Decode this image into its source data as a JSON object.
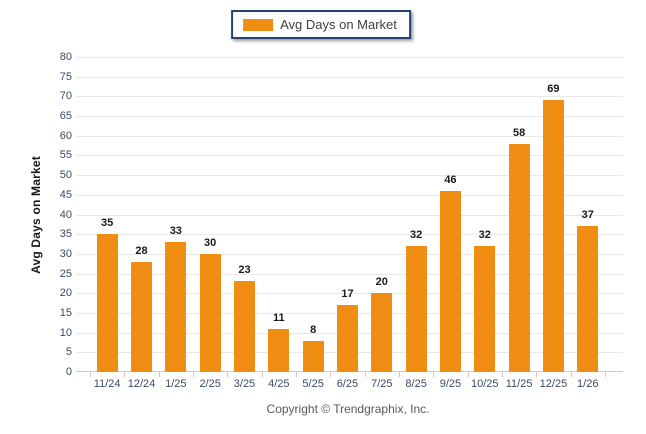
{
  "legend": {
    "label": "Avg Days on Market",
    "swatch_icon": "orange-square-swatch",
    "swatch_color": "#EF8E12",
    "border_color": "#26436F"
  },
  "footer": {
    "copyright": "Copyright © Trendgraphix, Inc."
  },
  "colors": {
    "bar": "#EF8E12",
    "gridline": "#E8E8E8",
    "axis_line": "#C9C9C9",
    "tick_label": "#3C4961",
    "value_label": "#1A1A1A"
  },
  "chart_data": {
    "type": "bar",
    "title": "",
    "categories": [
      "11/24",
      "12/24",
      "1/25",
      "2/25",
      "3/25",
      "4/25",
      "5/25",
      "6/25",
      "7/25",
      "8/25",
      "9/25",
      "10/25",
      "11/25",
      "12/25",
      "1/26"
    ],
    "values": [
      35,
      28,
      33,
      30,
      23,
      11,
      8,
      17,
      20,
      32,
      46,
      32,
      58,
      69,
      37
    ],
    "xlabel": "",
    "ylabel": "Avg Days on Market",
    "ylim": [
      0,
      80
    ],
    "ytick_step": 5,
    "grid": true,
    "legend_position": "top-center",
    "legend_entries": [
      "Avg Days on Market"
    ],
    "bar_color": "#EF8E12",
    "value_labels_shown": true
  }
}
